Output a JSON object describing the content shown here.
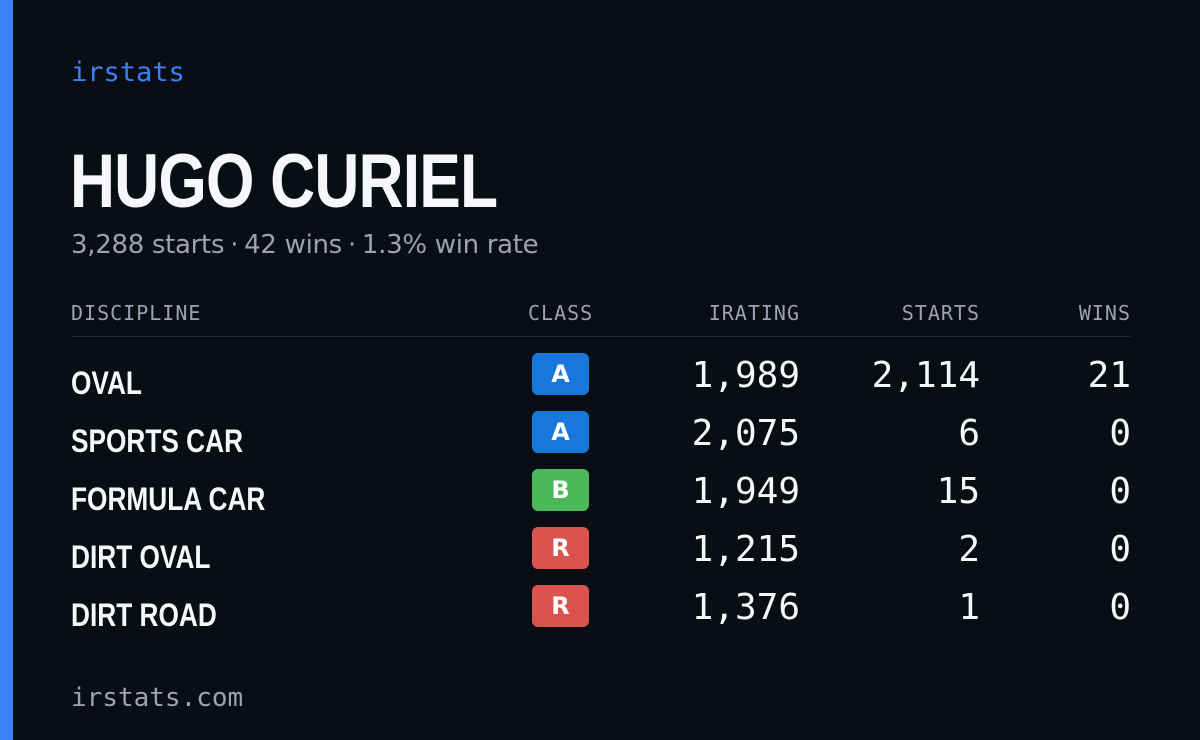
{
  "brand": "irstats",
  "driver": {
    "name": "HUGO CURIEL",
    "summary": {
      "starts": "3,288 starts",
      "wins": "42 wins",
      "win_rate": "1.3% win rate",
      "separator": "·"
    }
  },
  "table": {
    "headers": {
      "discipline": "DISCIPLINE",
      "class": "CLASS",
      "irating": "IRATING",
      "starts": "STARTS",
      "wins": "WINS"
    },
    "rows": [
      {
        "discipline": "OVAL",
        "class": "A",
        "class_color": "#1877db",
        "irating": "1,989",
        "starts": "2,114",
        "wins": "21"
      },
      {
        "discipline": "SPORTS CAR",
        "class": "A",
        "class_color": "#1877db",
        "irating": "2,075",
        "starts": "6",
        "wins": "0"
      },
      {
        "discipline": "FORMULA CAR",
        "class": "B",
        "class_color": "#4cb85c",
        "irating": "1,949",
        "starts": "15",
        "wins": "0"
      },
      {
        "discipline": "DIRT OVAL",
        "class": "R",
        "class_color": "#d9534f",
        "irating": "1,215",
        "starts": "2",
        "wins": "0"
      },
      {
        "discipline": "DIRT ROAD",
        "class": "R",
        "class_color": "#d9534f",
        "irating": "1,376",
        "starts": "1",
        "wins": "0"
      }
    ]
  },
  "footer": {
    "url": "irstats.com"
  },
  "colors": {
    "background": "#0a0d14",
    "accent": "#3b82f6",
    "muted_text": "#9aa3b2",
    "primary_text": "#f5f7fb"
  }
}
